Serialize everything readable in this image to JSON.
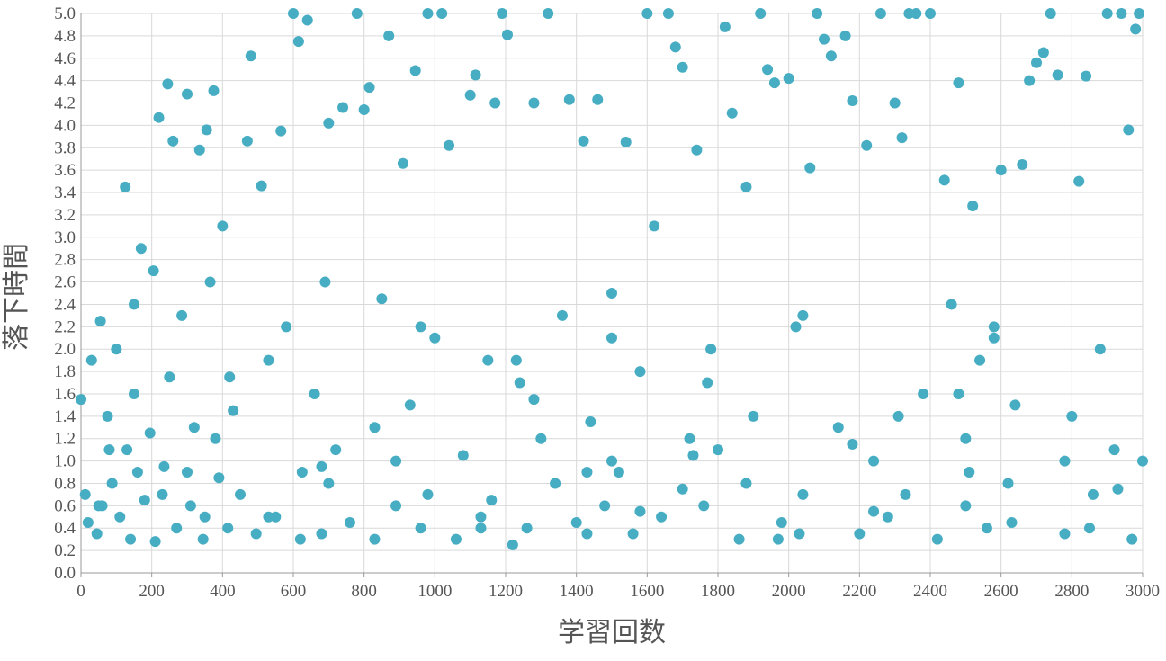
{
  "chart_data": {
    "type": "scatter",
    "color": "#46adc3",
    "grid": true,
    "x_label": "学習回数",
    "y_label": "落下時間",
    "xlim": [
      0,
      3000
    ],
    "ylim": [
      0,
      5
    ],
    "xticks": [
      0,
      200,
      400,
      600,
      800,
      1000,
      1200,
      1400,
      1600,
      1800,
      2000,
      2200,
      2400,
      2600,
      2800,
      3000
    ],
    "yticks": [
      {
        "value": 0,
        "label": "0.0"
      },
      0.2,
      0.4,
      0.6,
      0.8,
      {
        "value": 1,
        "label": "1.0"
      },
      1.2,
      1.4,
      1.6,
      1.8,
      {
        "value": 2,
        "label": "2.0"
      },
      2.2,
      2.4,
      2.6,
      2.8,
      {
        "value": 3,
        "label": "3.0"
      },
      3.2,
      3.4,
      3.6,
      3.8,
      {
        "value": 4,
        "label": "4.0"
      },
      4.2,
      4.4,
      4.6,
      4.8,
      {
        "value": 5,
        "label": "5.0"
      }
    ],
    "x": [
      0,
      12,
      20,
      30,
      45,
      55,
      60,
      75,
      88,
      100,
      110,
      125,
      130,
      140,
      150,
      160,
      170,
      180,
      195,
      205,
      210,
      220,
      235,
      245,
      250,
      260,
      270,
      285,
      300,
      310,
      320,
      335,
      345,
      355,
      365,
      375,
      390,
      400,
      415,
      430,
      450,
      470,
      480,
      495,
      510,
      530,
      550,
      565,
      580,
      600,
      615,
      625,
      640,
      660,
      680,
      700,
      720,
      740,
      760,
      780,
      800,
      815,
      830,
      850,
      870,
      890,
      910,
      930,
      945,
      960,
      980,
      1000,
      1020,
      1040,
      1060,
      1080,
      1100,
      1115,
      1130,
      1150,
      1170,
      1190,
      1205,
      1220,
      1240,
      1260,
      1280,
      1300,
      1320,
      1340,
      1360,
      1380,
      1400,
      1420,
      1440,
      1460,
      1480,
      1500,
      1520,
      1540,
      1560,
      1580,
      1600,
      1620,
      1640,
      1660,
      1680,
      1700,
      1720,
      1740,
      1760,
      1780,
      1800,
      1820,
      1840,
      1860,
      1880,
      1900,
      1920,
      1940,
      1960,
      1980,
      2000,
      2020,
      2040,
      2060,
      2080,
      2100,
      2120,
      2140,
      2160,
      2180,
      2200,
      2220,
      2240,
      2260,
      2280,
      2300,
      2320,
      2340,
      2360,
      2380,
      2400,
      2420,
      2440,
      2460,
      2480,
      2500,
      2520,
      2540,
      2560,
      2580,
      2600,
      2620,
      2640,
      2660,
      2680,
      2700,
      2720,
      2740,
      2760,
      2780,
      2800,
      2820,
      2840,
      2860,
      2880,
      2900,
      2920,
      2940,
      2960,
      2970,
      2980,
      2990,
      3000,
      2500,
      1500,
      700,
      300,
      50,
      80,
      230,
      380,
      530,
      680,
      830,
      980,
      1130,
      1280,
      1430,
      1580,
      1730,
      1880,
      2030,
      2180,
      2330,
      2480,
      2630,
      2780,
      2930,
      150,
      420,
      690,
      960,
      1230,
      1500,
      1770,
      2040,
      2310,
      2580,
      350,
      620,
      890,
      1160,
      1430,
      1700,
      1970,
      2240,
      2510,
      2850
    ],
    "values": [
      1.55,
      0.7,
      0.45,
      1.9,
      0.35,
      2.25,
      0.6,
      1.4,
      0.8,
      2.0,
      0.5,
      3.45,
      1.1,
      0.3,
      1.6,
      0.9,
      2.9,
      0.65,
      1.25,
      2.7,
      0.28,
      4.07,
      0.95,
      4.37,
      1.75,
      3.86,
      0.4,
      2.3,
      4.28,
      0.6,
      1.3,
      3.78,
      0.3,
      3.96,
      2.6,
      4.31,
      0.85,
      3.1,
      0.4,
      1.45,
      0.7,
      3.86,
      4.62,
      0.35,
      3.46,
      1.9,
      0.5,
      3.95,
      2.2,
      5.0,
      4.75,
      0.9,
      4.94,
      1.6,
      0.35,
      4.02,
      1.1,
      4.16,
      0.45,
      5.0,
      4.14,
      4.34,
      0.3,
      2.45,
      4.8,
      0.6,
      3.66,
      1.5,
      4.49,
      0.4,
      5.0,
      2.1,
      5.0,
      3.82,
      0.3,
      1.05,
      4.27,
      4.45,
      0.5,
      1.9,
      4.2,
      5.0,
      4.81,
      0.25,
      1.7,
      0.4,
      4.2,
      1.2,
      5.0,
      0.8,
      2.3,
      4.23,
      0.45,
      3.86,
      1.35,
      4.23,
      0.6,
      2.1,
      0.9,
      3.85,
      0.35,
      1.8,
      5.0,
      3.1,
      0.5,
      5.0,
      4.7,
      4.52,
      1.2,
      3.78,
      0.6,
      2.0,
      1.1,
      4.88,
      4.11,
      0.3,
      3.45,
      1.4,
      5.0,
      4.5,
      4.38,
      0.45,
      4.42,
      2.2,
      0.7,
      3.62,
      5.0,
      4.77,
      4.62,
      1.3,
      4.8,
      4.22,
      0.35,
      3.82,
      1.0,
      5.0,
      0.5,
      4.2,
      3.89,
      5.0,
      5.0,
      1.6,
      5.0,
      0.3,
      3.51,
      2.4,
      4.38,
      0.6,
      3.28,
      1.9,
      0.4,
      2.2,
      3.6,
      0.8,
      1.5,
      3.65,
      4.4,
      4.56,
      4.65,
      5.0,
      4.45,
      0.35,
      1.4,
      3.5,
      4.44,
      0.7,
      2.0,
      5.0,
      1.1,
      5.0,
      3.96,
      0.3,
      4.86,
      5.0,
      1.0,
      1.2,
      1.0,
      0.8,
      0.9,
      0.6,
      1.1,
      0.7,
      1.2,
      0.5,
      0.95,
      1.3,
      0.7,
      0.4,
      1.55,
      0.9,
      0.55,
      1.05,
      0.8,
      0.35,
      1.15,
      0.7,
      1.6,
      0.45,
      1.0,
      0.75,
      2.4,
      1.75,
      2.6,
      2.2,
      1.9,
      2.5,
      1.7,
      2.3,
      1.4,
      2.1,
      0.5,
      0.3,
      1.0,
      0.65,
      0.35,
      0.75,
      0.3,
      0.55,
      0.9,
      0.4
    ]
  }
}
